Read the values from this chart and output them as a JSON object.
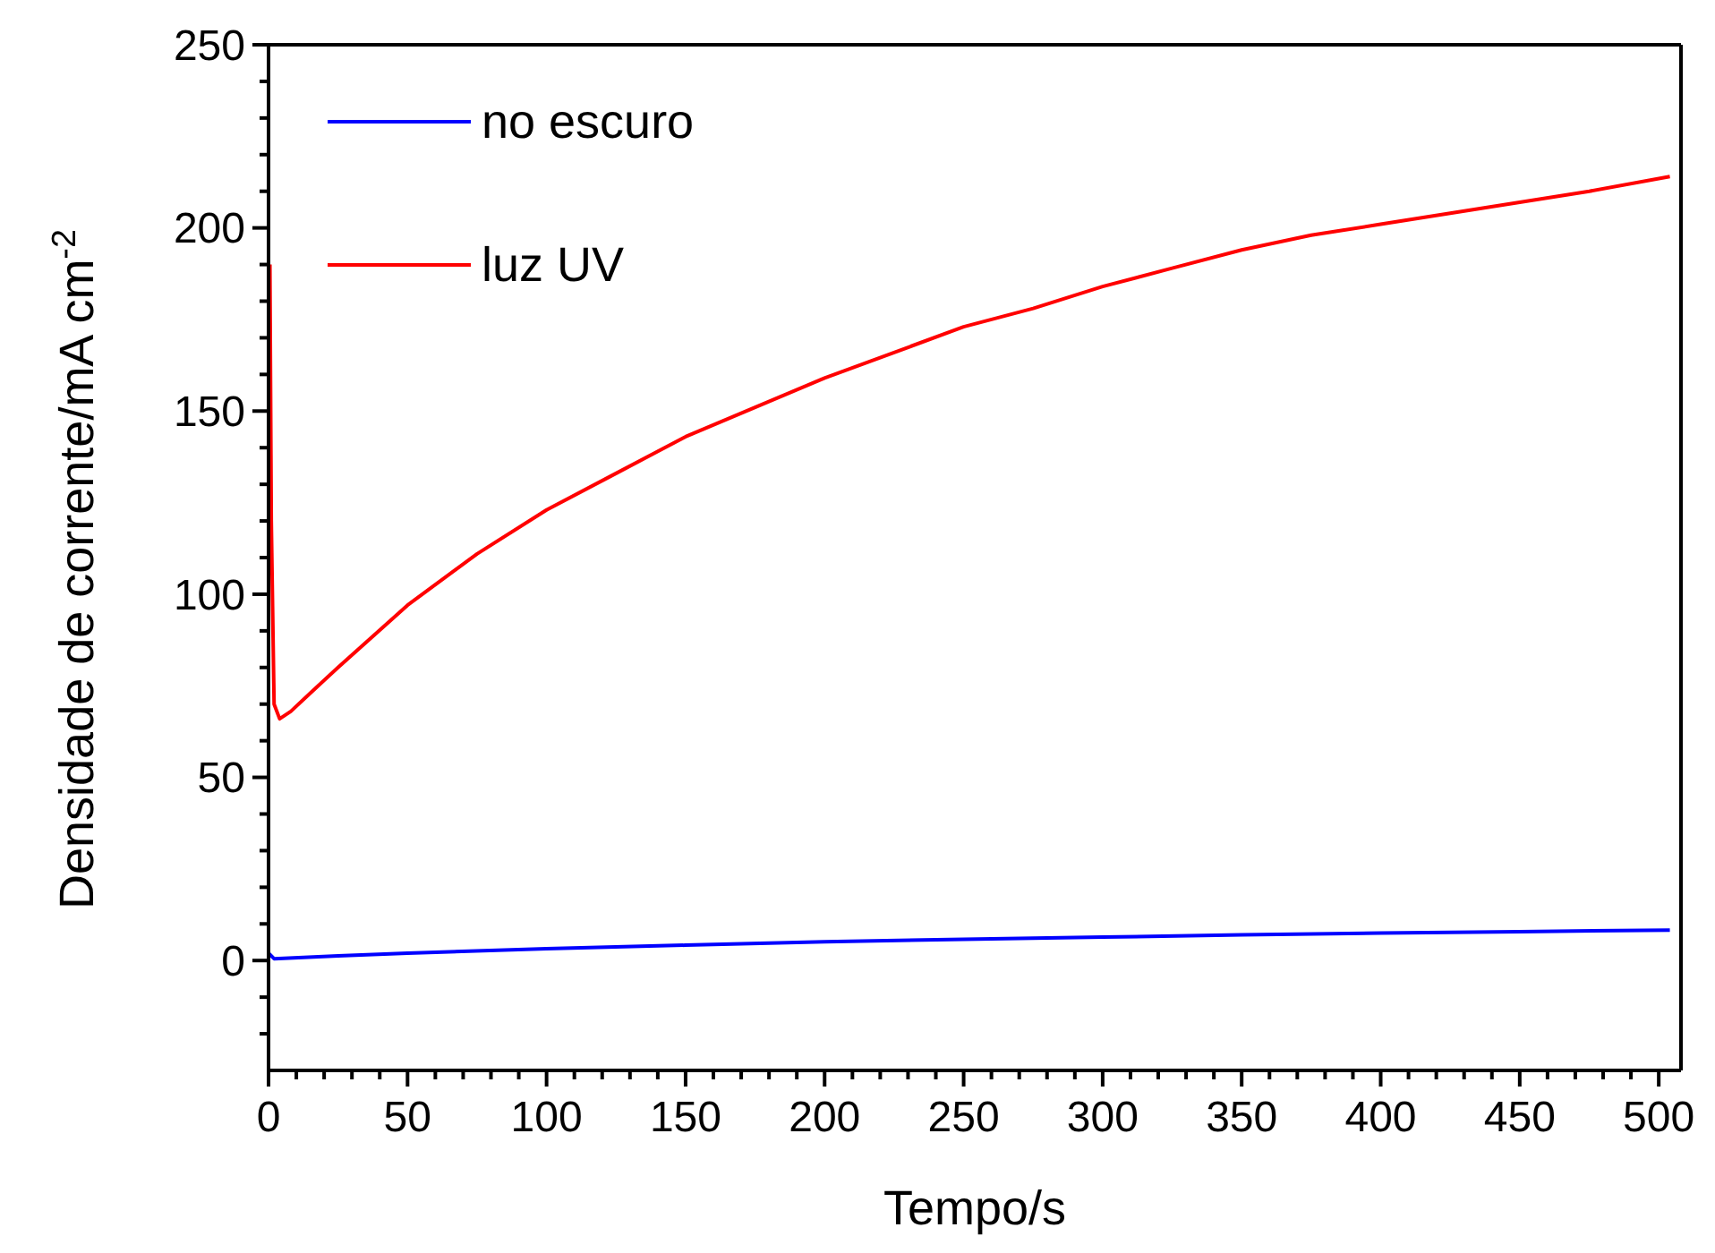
{
  "chart_data": {
    "type": "line",
    "xlabel": "Tempo/s",
    "ylabel": "Densidade de corrente/mA cm$^{-2}$",
    "xlim": [
      0,
      508
    ],
    "ylim": [
      -30,
      250
    ],
    "xticks": [
      0,
      {
        "value": 10,
        "label": null
      },
      {
        "value": 20,
        "label": null
      },
      {
        "value": 30,
        "label": null
      },
      {
        "value": 40,
        "label": null
      },
      50,
      {
        "value": 60,
        "label": null
      },
      {
        "value": 70,
        "label": null
      },
      {
        "value": 80,
        "label": null
      },
      {
        "value": 90,
        "label": null
      },
      100,
      {
        "value": 110,
        "label": null
      },
      {
        "value": 120,
        "label": null
      },
      {
        "value": 130,
        "label": null
      },
      {
        "value": 140,
        "label": null
      },
      150,
      {
        "value": 160,
        "label": null
      },
      {
        "value": 170,
        "label": null
      },
      {
        "value": 180,
        "label": null
      },
      {
        "value": 190,
        "label": null
      },
      200,
      {
        "value": 210,
        "label": null
      },
      {
        "value": 220,
        "label": null
      },
      {
        "value": 230,
        "label": null
      },
      {
        "value": 240,
        "label": null
      },
      250,
      {
        "value": 260,
        "label": null
      },
      {
        "value": 270,
        "label": null
      },
      {
        "value": 280,
        "label": null
      },
      {
        "value": 290,
        "label": null
      },
      300,
      {
        "value": 310,
        "label": null
      },
      {
        "value": 320,
        "label": null
      },
      {
        "value": 330,
        "label": null
      },
      {
        "value": 340,
        "label": null
      },
      350,
      {
        "value": 360,
        "label": null
      },
      {
        "value": 370,
        "label": null
      },
      {
        "value": 380,
        "label": null
      },
      {
        "value": 390,
        "label": null
      },
      400,
      {
        "value": 410,
        "label": null
      },
      {
        "value": 420,
        "label": null
      },
      {
        "value": 430,
        "label": null
      },
      {
        "value": 440,
        "label": null
      },
      450,
      {
        "value": 460,
        "label": null
      },
      {
        "value": 470,
        "label": null
      },
      {
        "value": 480,
        "label": null
      },
      {
        "value": 490,
        "label": null
      },
      500
    ],
    "yticks": [
      {
        "value": -20,
        "label": null
      },
      {
        "value": -10,
        "label": null
      },
      0,
      {
        "value": 10,
        "label": null
      },
      {
        "value": 20,
        "label": null
      },
      {
        "value": 30,
        "label": null
      },
      {
        "value": 40,
        "label": null
      },
      50,
      {
        "value": 60,
        "label": null
      },
      {
        "value": 70,
        "label": null
      },
      {
        "value": 80,
        "label": null
      },
      {
        "value": 90,
        "label": null
      },
      100,
      {
        "value": 110,
        "label": null
      },
      {
        "value": 120,
        "label": null
      },
      {
        "value": 130,
        "label": null
      },
      {
        "value": 140,
        "label": null
      },
      150,
      {
        "value": 160,
        "label": null
      },
      {
        "value": 170,
        "label": null
      },
      {
        "value": 180,
        "label": null
      },
      {
        "value": 190,
        "label": null
      },
      200,
      {
        "value": 210,
        "label": null
      },
      {
        "value": 220,
        "label": null
      },
      {
        "value": 230,
        "label": null
      },
      {
        "value": 240,
        "label": null
      },
      250
    ],
    "grid": false,
    "legend": "top left",
    "marker": "none",
    "line_style": "solid",
    "series": [
      {
        "name": "no escuro",
        "color": "#0000ff",
        "x": [
          0,
          2,
          25,
          50,
          100,
          150,
          200,
          250,
          300,
          350,
          400,
          450,
          504
        ],
        "values": [
          2,
          0.5,
          1.3,
          2,
          3.2,
          4.2,
          5.1,
          5.8,
          6.4,
          7,
          7.5,
          7.9,
          8.3
        ]
      },
      {
        "name": "luz UV",
        "color": "#ff0000",
        "x": [
          0.5,
          1,
          2,
          4,
          8,
          15,
          25,
          50,
          75,
          100,
          125,
          150,
          175,
          200,
          225,
          250,
          275,
          300,
          325,
          350,
          375,
          400,
          425,
          450,
          475,
          504
        ],
        "values": [
          190,
          120,
          70,
          66,
          68,
          73,
          80,
          97,
          111,
          123,
          133,
          143,
          151,
          159,
          166,
          173,
          178,
          184,
          189,
          194,
          198,
          201,
          204,
          207,
          210,
          214
        ]
      }
    ]
  }
}
